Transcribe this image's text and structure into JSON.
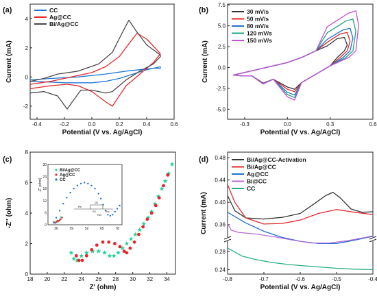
{
  "chart_data": [
    {
      "panel": "(a)",
      "type": "line",
      "xlabel": "Potential (V vs. Ag/AgCl)",
      "ylabel": "Current (mA)",
      "xlim": [
        -0.45,
        0.6
      ],
      "ylim": [
        -2.9,
        5.0
      ],
      "xticks": [
        "-0.4",
        "-0.2",
        "0.0",
        "0.2",
        "0.4",
        "0.6"
      ],
      "xtick_values": [
        -0.4,
        -0.2,
        0.0,
        0.2,
        0.4,
        0.6
      ],
      "yticks": [
        "-2",
        "0",
        "2",
        "4"
      ],
      "ytick_values": [
        -2,
        0,
        2,
        4
      ],
      "legend_position": "top-left",
      "series": [
        {
          "name": "CC",
          "color": "#1f77d4",
          "x": [
            -0.45,
            -0.3,
            -0.1,
            0.1,
            0.25,
            0.35,
            0.45,
            0.5,
            0.5,
            0.4,
            0.3,
            0.2,
            0.1,
            0.0,
            -0.1,
            -0.2,
            -0.3,
            -0.45
          ],
          "y": [
            -0.2,
            -0.1,
            0.0,
            0.2,
            0.4,
            0.5,
            0.6,
            0.6,
            0.7,
            0.5,
            0.2,
            -0.1,
            -0.3,
            -0.4,
            -0.4,
            -0.4,
            -0.35,
            -0.3
          ]
        },
        {
          "name": "Ag@CC",
          "color": "#e8262a",
          "x": [
            -0.45,
            -0.3,
            -0.15,
            0.0,
            0.1,
            0.2,
            0.28,
            0.33,
            0.4,
            0.48,
            0.5,
            0.45,
            0.35,
            0.25,
            0.2,
            0.15,
            0.1,
            0.0,
            -0.1,
            -0.18,
            -0.3,
            -0.45
          ],
          "y": [
            -0.5,
            -0.3,
            0.0,
            0.3,
            0.7,
            1.4,
            2.4,
            3.0,
            2.6,
            1.8,
            1.6,
            1.0,
            0.2,
            -0.6,
            -1.3,
            -2.0,
            -1.7,
            -1.0,
            -0.6,
            -0.5,
            -0.6,
            -0.8
          ]
        },
        {
          "name": "Bi/Ag@CC",
          "color": "#474747",
          "x": [
            -0.45,
            -0.35,
            -0.25,
            -0.1,
            0.05,
            0.15,
            0.22,
            0.27,
            0.32,
            0.4,
            0.5,
            0.5,
            0.45,
            0.35,
            0.25,
            0.2,
            0.15,
            0.1,
            0.0,
            -0.08,
            -0.15,
            -0.18,
            -0.25,
            -0.35,
            -0.45
          ],
          "y": [
            -0.3,
            -0.1,
            0.2,
            0.4,
            0.9,
            1.7,
            3.0,
            3.9,
            3.2,
            2.2,
            1.5,
            1.4,
            0.9,
            0.4,
            -0.2,
            -0.6,
            -1.0,
            -1.1,
            -0.9,
            -0.9,
            -1.8,
            -2.2,
            -1.3,
            -1.0,
            -1.1
          ]
        }
      ]
    },
    {
      "panel": "(b)",
      "type": "line",
      "xlabel": "Potential (V vs. Ag/AgCl)",
      "ylabel": "Current (mA)",
      "xlim": [
        -0.42,
        0.6
      ],
      "ylim": [
        -6.2,
        7.6
      ],
      "xticks": [
        "-0.3",
        "0.0",
        "0.3",
        "0.6"
      ],
      "xtick_values": [
        -0.3,
        0.0,
        0.3,
        0.6
      ],
      "yticks": [
        "-5.0",
        "-2.5",
        "0.0",
        "2.5",
        "5.0",
        "7.5"
      ],
      "ytick_values": [
        -5,
        -2.5,
        0,
        2.5,
        5,
        7.5
      ],
      "legend_position": "top-left",
      "scan_rates": [
        30,
        50,
        80,
        120,
        150
      ],
      "series": [
        {
          "name": "30 mV/s",
          "color": "#333333"
        },
        {
          "name": "50 mV/s",
          "color": "#e8262a"
        },
        {
          "name": "80 mV/s",
          "color": "#1f6fd4"
        },
        {
          "name": "120 mV/s",
          "color": "#1aa37f"
        },
        {
          "name": "150 mV/s",
          "color": "#c54fd6"
        }
      ]
    },
    {
      "panel": "(c)",
      "type": "scatter",
      "xlabel": "Z' (ohm)",
      "ylabel": "-Z'' (ohm)",
      "xlim": [
        18,
        35
      ],
      "ylim": [
        0,
        8
      ],
      "xticks": [
        "18",
        "20",
        "22",
        "24",
        "26",
        "28",
        "30",
        "32",
        "34"
      ],
      "xtick_values": [
        18,
        20,
        22,
        24,
        26,
        28,
        30,
        32,
        34
      ],
      "yticks": [
        "0",
        "2",
        "4",
        "6",
        "8"
      ],
      "ytick_values": [
        0,
        2,
        4,
        6,
        8
      ],
      "series": [
        {
          "name": "Bi/Ag@CC",
          "color": "#23d39a",
          "marker": "star",
          "x": [
            22.8,
            23.1,
            23.5,
            24.0,
            24.6,
            25.3,
            26.0,
            26.7,
            27.3,
            27.8,
            28.3,
            28.8,
            29.3,
            29.8,
            30.3,
            30.8,
            31.3,
            31.8,
            32.2,
            32.6,
            33.0,
            33.4,
            33.8,
            34.2,
            34.6
          ],
          "y": [
            1.4,
            1.0,
            0.9,
            1.2,
            1.4,
            1.5,
            1.5,
            1.4,
            1.2,
            1.2,
            1.4,
            1.7,
            2.0,
            2.3,
            2.6,
            2.9,
            3.3,
            3.7,
            4.1,
            4.6,
            5.1,
            5.6,
            6.1,
            6.6,
            7.2
          ]
        },
        {
          "name": "Ag@CC",
          "color": "#e8262a",
          "marker": "circle",
          "x": [
            23.4,
            23.7,
            24.1,
            24.6,
            25.2,
            25.8,
            26.5,
            27.2,
            27.9,
            28.5,
            29.0,
            29.3,
            29.7,
            30.2,
            30.7,
            31.2,
            31.7,
            32.2,
            32.7,
            33.1,
            33.6,
            34.1
          ],
          "y": [
            1.2,
            0.9,
            0.9,
            1.2,
            1.6,
            1.9,
            2.1,
            2.1,
            2.0,
            1.8,
            1.5,
            1.4,
            1.7,
            2.1,
            2.6,
            3.1,
            3.6,
            4.0,
            4.5,
            5.0,
            5.8,
            6.5
          ]
        }
      ],
      "inset": {
        "ylabel": "-Z'' (ohm)",
        "xticks": [
          "26",
          "39",
          "52",
          "65",
          "78"
        ],
        "xtick_values": [
          26,
          39,
          52,
          65,
          78
        ],
        "yticks": [
          "0",
          "6",
          "12",
          "18",
          "24",
          "30"
        ],
        "ytick_values": [
          0,
          6,
          12,
          18,
          24,
          30
        ],
        "xlim": [
          19,
          82
        ],
        "ylim": [
          0,
          30
        ],
        "legend": [
          "Bi/Ag@CC",
          "Ag@CC",
          "CC"
        ],
        "series": [
          {
            "name": "Bi/Ag@CC",
            "color": "#23d39a",
            "x": [
              24,
              25,
              26,
              27,
              28,
              29,
              30
            ],
            "y": [
              1.5,
              1.0,
              1.2,
              1.4,
              2.0,
              2.8,
              3.8
            ]
          },
          {
            "name": "Ag@CC",
            "color": "#e8262a",
            "x": [
              24,
              25,
              26,
              27,
              28,
              29,
              30,
              31
            ],
            "y": [
              1.2,
              0.9,
              1.5,
              2.0,
              1.8,
              2.2,
              2.8,
              3.6
            ]
          },
          {
            "name": "CC",
            "color": "#1f6fd4",
            "x": [
              24,
              26,
              29,
              32,
              35,
              38,
              41,
              44,
              47,
              50,
              53,
              56,
              59,
              62,
              64,
              66,
              68,
              70,
              72,
              74,
              76,
              78,
              80
            ],
            "y": [
              1,
              3.5,
              7,
              10.5,
              13.5,
              16,
              18,
              19.5,
              20.5,
              21,
              20.5,
              19.5,
              18,
              15.5,
              13,
              10,
              7,
              5,
              4.5,
              5,
              6.5,
              8,
              9.5
            ]
          }
        ],
        "circuit_labels": [
          "Rs",
          "Q1",
          "R1",
          "Zw",
          "Rct"
        ]
      }
    },
    {
      "panel": "(d)",
      "type": "line",
      "xlabel": "Potential (V vs. Ag/AgCl)",
      "ylabel": "Current (mA)",
      "xlim": [
        -0.8,
        -0.4
      ],
      "xticks": [
        "-0.8",
        "-0.7",
        "-0.6",
        "-0.5",
        "-0.4"
      ],
      "xtick_values": [
        -0.8,
        -0.7,
        -0.6,
        -0.5,
        -0.4
      ],
      "upper_ylim": [
        0.34,
        0.49
      ],
      "lower_ylim": [
        0.23,
        0.3
      ],
      "yticks_upper": [
        "0.36",
        "0.40",
        "0.44",
        "0.48"
      ],
      "yticks_upper_values": [
        0.36,
        0.4,
        0.44,
        0.48
      ],
      "yticks_lower": [
        "0.24",
        "0.28"
      ],
      "yticks_lower_values": [
        0.24,
        0.28
      ],
      "broken_axis": true,
      "legend_position": "top-left",
      "series": [
        {
          "name": "Bi/Ag@CC-Activation",
          "color": "#333333",
          "x": [
            -0.8,
            -0.78,
            -0.75,
            -0.7,
            -0.65,
            -0.6,
            -0.56,
            -0.53,
            -0.51,
            -0.49,
            -0.46,
            -0.43,
            -0.4
          ],
          "y": [
            0.412,
            0.385,
            0.372,
            0.37,
            0.373,
            0.38,
            0.398,
            0.412,
            0.418,
            0.408,
            0.388,
            0.382,
            0.383
          ]
        },
        {
          "name": "Bi/Ag@CC",
          "color": "#e8262a",
          "x": [
            -0.8,
            -0.78,
            -0.75,
            -0.7,
            -0.65,
            -0.6,
            -0.55,
            -0.5,
            -0.45,
            -0.4
          ],
          "y": [
            0.432,
            0.4,
            0.372,
            0.361,
            0.362,
            0.368,
            0.38,
            0.387,
            0.382,
            0.378
          ]
        },
        {
          "name": "Ag@CC",
          "color": "#1f6fd4",
          "x": [
            -0.8,
            -0.75,
            -0.7,
            -0.65,
            -0.6,
            -0.55,
            -0.5,
            -0.45,
            -0.4
          ],
          "y": [
            0.382,
            0.363,
            0.348,
            0.337,
            0.33,
            0.326,
            0.326,
            0.332,
            0.339
          ]
        },
        {
          "name": "Bi@CC",
          "color": "#b66ad8",
          "x": [
            -0.8,
            -0.79,
            -0.77,
            -0.72,
            -0.67,
            -0.62,
            -0.57,
            -0.52,
            -0.47,
            -0.42,
            -0.4
          ],
          "y": [
            0.362,
            0.35,
            0.346,
            0.343,
            0.338,
            0.332,
            0.327,
            0.327,
            0.331,
            0.337,
            0.34
          ]
        },
        {
          "name": "CC",
          "color": "#23b07a",
          "x": [
            -0.8,
            -0.76,
            -0.72,
            -0.68,
            -0.64,
            -0.6,
            -0.55,
            -0.5,
            -0.45,
            -0.4
          ],
          "y": [
            0.288,
            0.27,
            0.262,
            0.256,
            0.252,
            0.249,
            0.246,
            0.243,
            0.241,
            0.24
          ]
        }
      ]
    }
  ]
}
